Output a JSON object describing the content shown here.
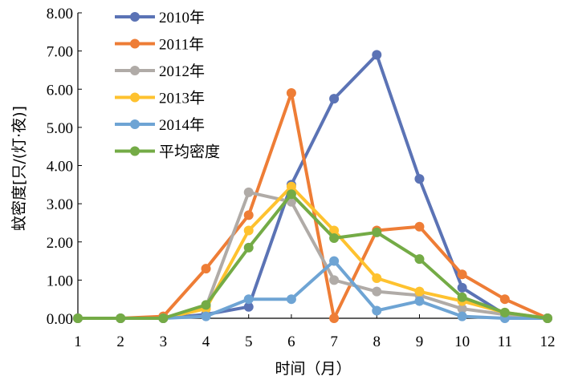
{
  "chart_data": {
    "type": "line",
    "title": "",
    "xlabel": "时间（月）",
    "ylabel": "蚊密度[只/(灯·夜)]",
    "x": [
      1,
      2,
      3,
      4,
      5,
      6,
      7,
      8,
      9,
      10,
      11,
      12
    ],
    "xlim": [
      1,
      12
    ],
    "ylim": [
      0,
      8
    ],
    "yticks": [
      "0.00",
      "1.00",
      "2.00",
      "3.00",
      "4.00",
      "5.00",
      "6.00",
      "7.00",
      "8.00"
    ],
    "xticks": [
      "1",
      "2",
      "3",
      "4",
      "5",
      "6",
      "7",
      "8",
      "9",
      "10",
      "11",
      "12"
    ],
    "grid": false,
    "legend_position": "top-left",
    "series": [
      {
        "name": "2010年",
        "color": "#5b73b5",
        "values": [
          0,
          0,
          0,
          0.1,
          0.3,
          3.5,
          5.75,
          6.9,
          3.65,
          0.8,
          0.1,
          0
        ]
      },
      {
        "name": "2011年",
        "color": "#ee7d36",
        "values": [
          0,
          0,
          0.05,
          1.3,
          2.7,
          5.9,
          0,
          2.3,
          2.4,
          1.15,
          0.5,
          0
        ]
      },
      {
        "name": "2012年",
        "color": "#b0aba7",
        "values": [
          0,
          0,
          0,
          0.3,
          3.3,
          3.05,
          1.0,
          0.7,
          0.6,
          0.25,
          0.1,
          0
        ]
      },
      {
        "name": "2013年",
        "color": "#fec22f",
        "values": [
          0,
          0,
          0,
          0.25,
          2.3,
          3.45,
          2.3,
          1.05,
          0.7,
          0.45,
          0.15,
          0
        ]
      },
      {
        "name": "2014年",
        "color": "#6ea4d4",
        "values": [
          0,
          0,
          0,
          0.05,
          0.5,
          0.5,
          1.5,
          0.2,
          0.45,
          0.05,
          0,
          0
        ]
      },
      {
        "name": "平均密度",
        "color": "#74ab46",
        "values": [
          0,
          0,
          0,
          0.35,
          1.85,
          3.25,
          2.1,
          2.25,
          1.55,
          0.55,
          0.15,
          0
        ]
      }
    ]
  }
}
